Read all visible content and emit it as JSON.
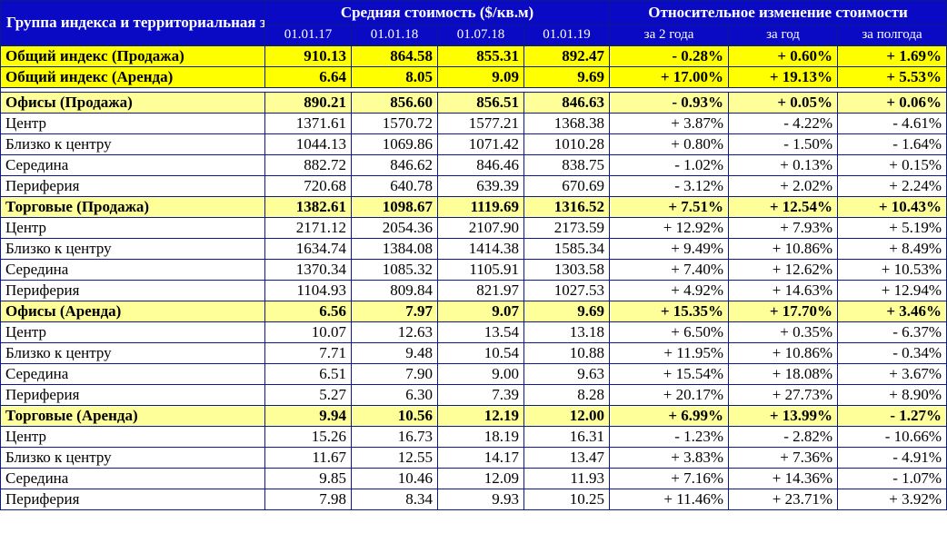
{
  "header": {
    "name_col": "Группа индекса и территориальная зона Киева",
    "avg_group": "Средняя стоимость ($/кв.м)",
    "rel_group": "Относительное изменение стоимости",
    "dates": [
      "01.01.17",
      "01.01.18",
      "01.07.18",
      "01.01.19"
    ],
    "periods": [
      "за 2 года",
      "за год",
      "за полгода"
    ]
  },
  "totals": [
    {
      "name": "Общий индекс (Продажа)",
      "values": [
        "910.13",
        "864.58",
        "855.31",
        "892.47"
      ],
      "changes": [
        "- 0.28%",
        "+ 0.60%",
        "+ 1.69%"
      ]
    },
    {
      "name": "Общий индекс (Аренда)",
      "values": [
        "6.64",
        "8.05",
        "9.09",
        "9.69"
      ],
      "changes": [
        "+ 17.00%",
        "+ 19.13%",
        "+ 5.53%"
      ]
    }
  ],
  "groups": [
    {
      "name": "Офисы (Продажа)",
      "values": [
        "890.21",
        "856.60",
        "856.51",
        "846.63"
      ],
      "changes": [
        "- 0.93%",
        "+ 0.05%",
        "+ 0.06%"
      ],
      "rows": [
        {
          "name": "Центр",
          "values": [
            "1371.61",
            "1570.72",
            "1577.21",
            "1368.38"
          ],
          "changes": [
            "+ 3.87%",
            "- 4.22%",
            "- 4.61%"
          ]
        },
        {
          "name": "Близко к центру",
          "values": [
            "1044.13",
            "1069.86",
            "1071.42",
            "1010.28"
          ],
          "changes": [
            "+ 0.80%",
            "- 1.50%",
            "- 1.64%"
          ]
        },
        {
          "name": "Середина",
          "values": [
            "882.72",
            "846.62",
            "846.46",
            "838.75"
          ],
          "changes": [
            "- 1.02%",
            "+ 0.13%",
            "+ 0.15%"
          ]
        },
        {
          "name": "Периферия",
          "values": [
            "720.68",
            "640.78",
            "639.39",
            "670.69"
          ],
          "changes": [
            "- 3.12%",
            "+ 2.02%",
            "+ 2.24%"
          ]
        }
      ]
    },
    {
      "name": "Торговые (Продажа)",
      "values": [
        "1382.61",
        "1098.67",
        "1119.69",
        "1316.52"
      ],
      "changes": [
        "+ 7.51%",
        "+ 12.54%",
        "+ 10.43%"
      ],
      "rows": [
        {
          "name": "Центр",
          "values": [
            "2171.12",
            "2054.36",
            "2107.90",
            "2173.59"
          ],
          "changes": [
            "+ 12.92%",
            "+ 7.93%",
            "+ 5.19%"
          ]
        },
        {
          "name": "Близко к центру",
          "values": [
            "1634.74",
            "1384.08",
            "1414.38",
            "1585.34"
          ],
          "changes": [
            "+ 9.49%",
            "+ 10.86%",
            "+ 8.49%"
          ]
        },
        {
          "name": "Середина",
          "values": [
            "1370.34",
            "1085.32",
            "1105.91",
            "1303.58"
          ],
          "changes": [
            "+ 7.40%",
            "+ 12.62%",
            "+ 10.53%"
          ]
        },
        {
          "name": "Периферия",
          "values": [
            "1104.93",
            "809.84",
            "821.97",
            "1027.53"
          ],
          "changes": [
            "+ 4.92%",
            "+ 14.63%",
            "+ 12.94%"
          ]
        }
      ]
    },
    {
      "name": "Офисы (Аренда)",
      "values": [
        "6.56",
        "7.97",
        "9.07",
        "9.69"
      ],
      "changes": [
        "+ 15.35%",
        "+ 17.70%",
        "+ 3.46%"
      ],
      "rows": [
        {
          "name": "Центр",
          "values": [
            "10.07",
            "12.63",
            "13.54",
            "13.18"
          ],
          "changes": [
            "+ 6.50%",
            "+ 0.35%",
            "- 6.37%"
          ]
        },
        {
          "name": "Близко к центру",
          "values": [
            "7.71",
            "9.48",
            "10.54",
            "10.88"
          ],
          "changes": [
            "+ 11.95%",
            "+ 10.86%",
            "- 0.34%"
          ]
        },
        {
          "name": "Середина",
          "values": [
            "6.51",
            "7.90",
            "9.00",
            "9.63"
          ],
          "changes": [
            "+ 15.54%",
            "+ 18.08%",
            "+ 3.67%"
          ]
        },
        {
          "name": "Периферия",
          "values": [
            "5.27",
            "6.30",
            "7.39",
            "8.28"
          ],
          "changes": [
            "+ 20.17%",
            "+ 27.73%",
            "+ 8.90%"
          ]
        }
      ]
    },
    {
      "name": "Торговые (Аренда)",
      "values": [
        "9.94",
        "10.56",
        "12.19",
        "12.00"
      ],
      "changes": [
        "+ 6.99%",
        "+ 13.99%",
        "- 1.27%"
      ],
      "rows": [
        {
          "name": "Центр",
          "values": [
            "15.26",
            "16.73",
            "18.19",
            "16.31"
          ],
          "changes": [
            "- 1.23%",
            "- 2.82%",
            "- 10.66%"
          ]
        },
        {
          "name": "Близко к центру",
          "values": [
            "11.67",
            "12.55",
            "14.17",
            "13.47"
          ],
          "changes": [
            "+ 3.83%",
            "+ 7.36%",
            "- 4.91%"
          ]
        },
        {
          "name": "Середина",
          "values": [
            "9.85",
            "10.46",
            "12.09",
            "11.93"
          ],
          "changes": [
            "+ 7.16%",
            "+ 14.36%",
            "- 1.07%"
          ]
        },
        {
          "name": "Периферия",
          "values": [
            "7.98",
            "8.34",
            "9.93",
            "10.25"
          ],
          "changes": [
            "+ 11.46%",
            "+ 23.71%",
            "+ 3.92%"
          ]
        }
      ]
    }
  ]
}
